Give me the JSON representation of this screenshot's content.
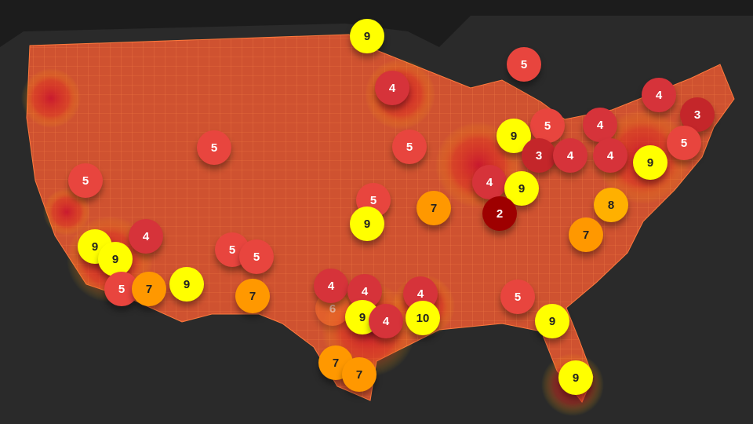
{
  "map": {
    "background_color": "#2a2a2a",
    "land_color": "#d2542e",
    "county_line_color": "#ff7a3d",
    "layers": [
      "county choropleth",
      "heatmap",
      "cluster markers"
    ]
  },
  "legend_colors": {
    "2": "#9e0000",
    "3": "#c4262a",
    "4": "#d6333a",
    "5": "#e8453e",
    "6": "#f06a2a",
    "7": "#ff9800",
    "8": "#ffb000",
    "9": "#ffff00",
    "10": "#ffff00"
  },
  "clusters": [
    {
      "count": "9"
    },
    {
      "count": "5"
    },
    {
      "count": "4"
    },
    {
      "count": "4"
    },
    {
      "count": "3"
    },
    {
      "count": "5"
    },
    {
      "count": "4"
    },
    {
      "count": "9"
    },
    {
      "count": "5"
    },
    {
      "count": "5"
    },
    {
      "count": "5"
    },
    {
      "count": "3"
    },
    {
      "count": "4"
    },
    {
      "count": "4"
    },
    {
      "count": "9"
    },
    {
      "count": "5"
    },
    {
      "count": "4"
    },
    {
      "count": "9"
    },
    {
      "count": "5"
    },
    {
      "count": "7"
    },
    {
      "count": "2"
    },
    {
      "count": "8"
    },
    {
      "count": "9"
    },
    {
      "count": "4"
    },
    {
      "count": "7"
    },
    {
      "count": "9"
    },
    {
      "count": "9"
    },
    {
      "count": "5"
    },
    {
      "count": "5"
    },
    {
      "count": "9"
    },
    {
      "count": "5"
    },
    {
      "count": "7"
    },
    {
      "count": "7"
    },
    {
      "count": "6"
    },
    {
      "count": "4"
    },
    {
      "count": "4"
    },
    {
      "count": "4"
    },
    {
      "count": "5"
    },
    {
      "count": "9"
    },
    {
      "count": "4"
    },
    {
      "count": "10"
    },
    {
      "count": "9"
    },
    {
      "count": "7"
    },
    {
      "count": "7"
    },
    {
      "count": "9"
    }
  ]
}
